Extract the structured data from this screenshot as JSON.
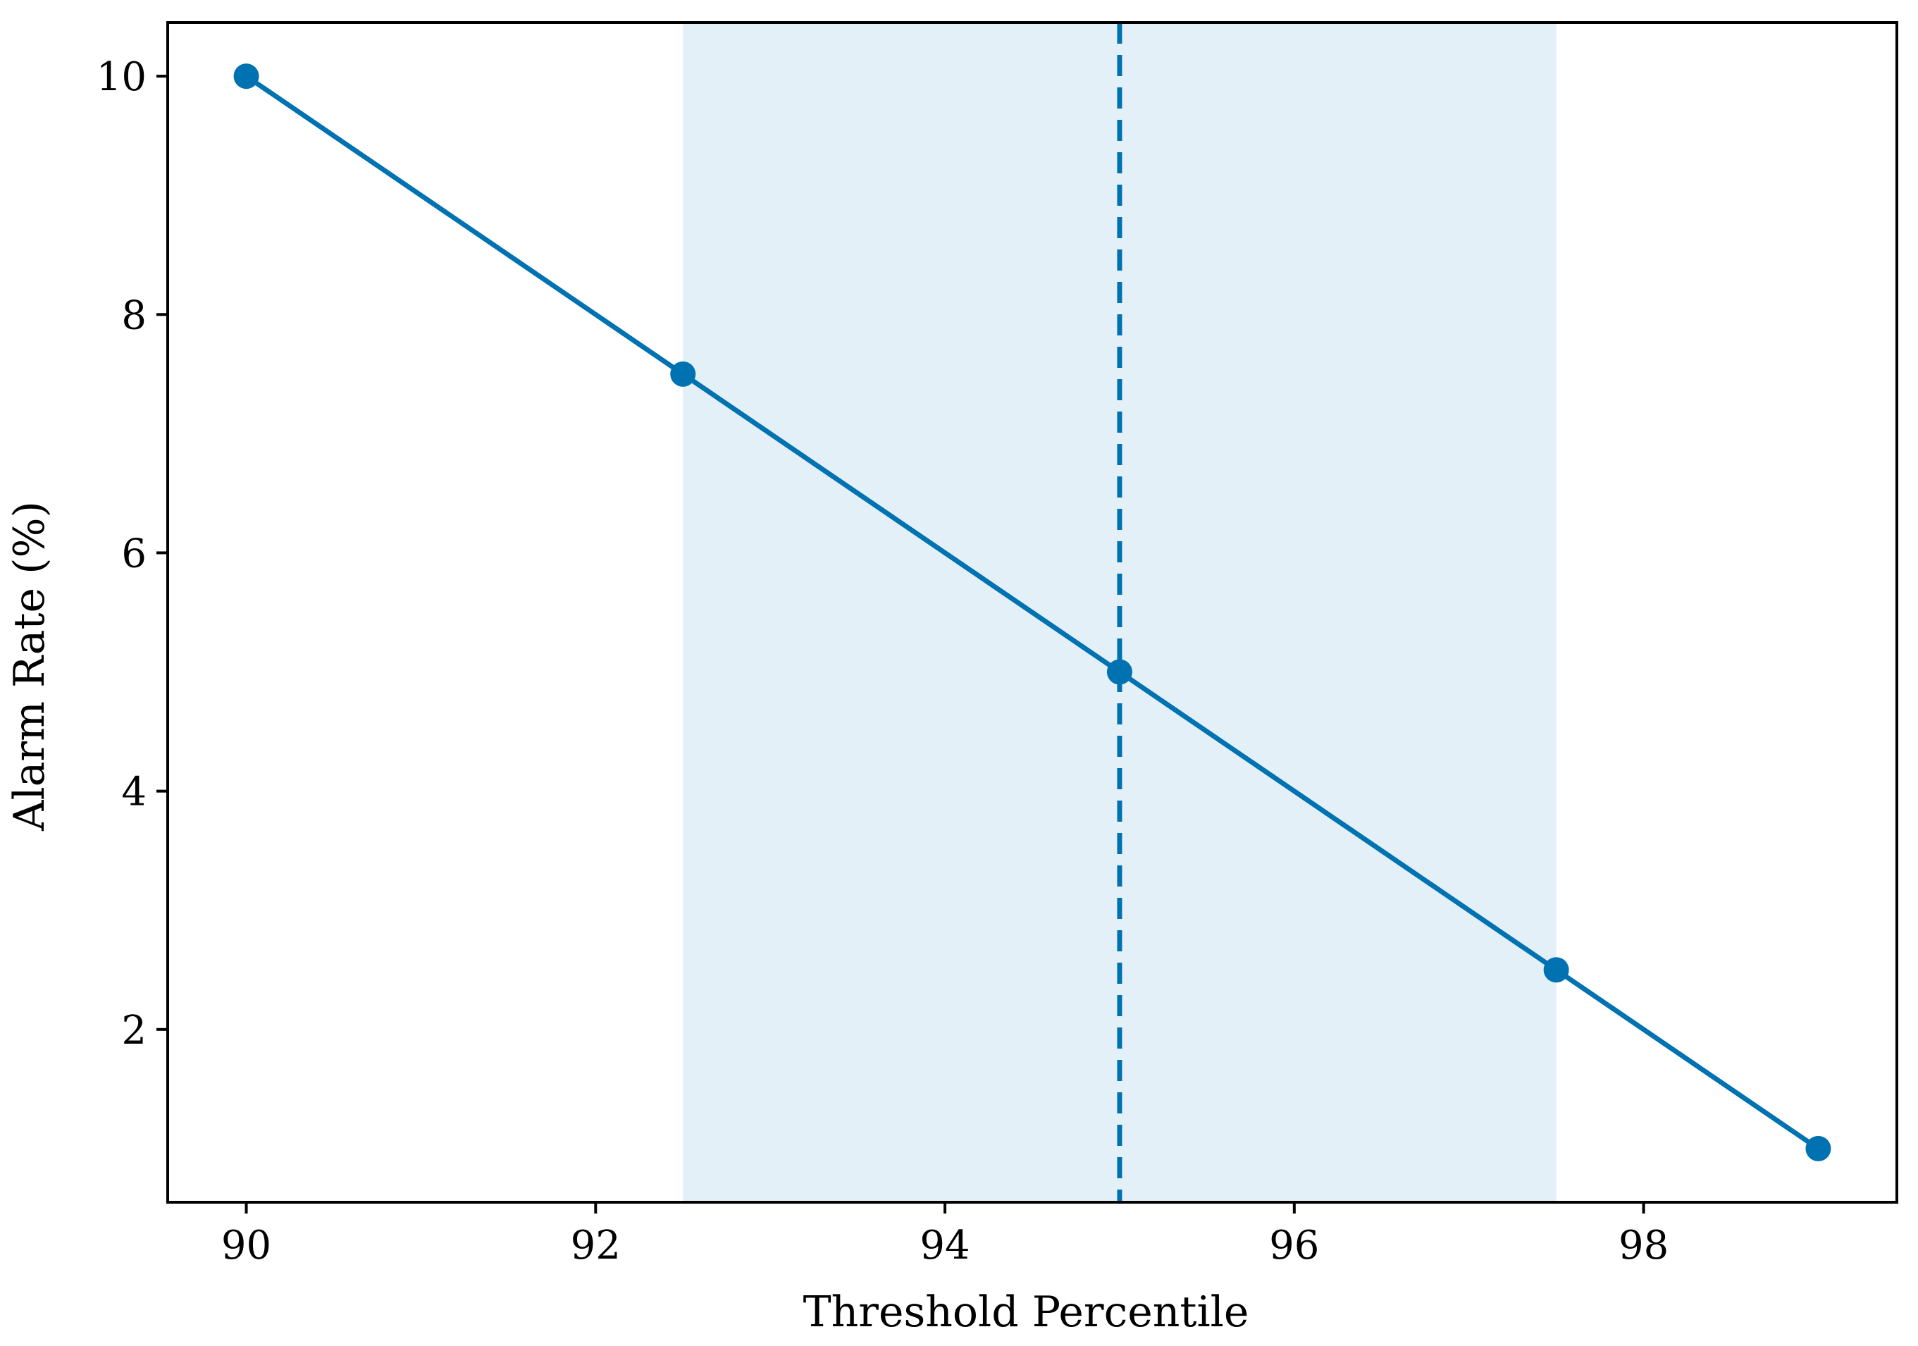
{
  "chart_data": {
    "type": "line",
    "title": "",
    "xlabel": "Threshold Percentile",
    "ylabel": "Alarm Rate (%)",
    "xlim": [
      89.55,
      99.45
    ],
    "ylim": [
      0.55,
      10.45
    ],
    "xticks": [
      90,
      92,
      94,
      96,
      98
    ],
    "yticks": [
      2,
      4,
      6,
      8,
      10
    ],
    "grid": false,
    "series": [
      {
        "x": [
          90,
          92.5,
          95,
          97.5,
          99
        ],
        "y": [
          10,
          7.5,
          5,
          2.5,
          1
        ],
        "color": "#0072b2",
        "marker": "circle"
      }
    ],
    "shaded_band": {
      "x_start": 92.5,
      "x_end": 97.5,
      "color": "#e3f0f8"
    },
    "reference_line": {
      "x": 95,
      "style": "dashed",
      "color": "#0072b2"
    }
  }
}
